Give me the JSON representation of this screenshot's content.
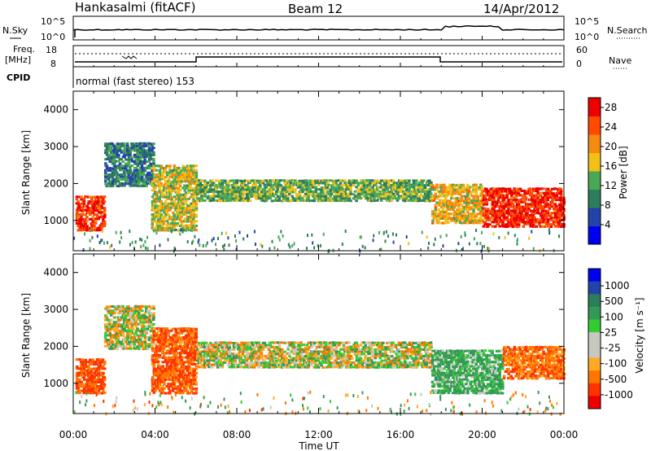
{
  "header": {
    "station": "Hankasalmi (fitACF)",
    "beam": "Beam 12",
    "date": "14/Apr/2012"
  },
  "strip": {
    "nsky_label": "N.Sky",
    "nsky_top": "10^5",
    "nsky_bottom": "10^0",
    "nsearch_label": "N.Search",
    "nsearch_top": "10^5",
    "nsearch_bottom": "10^0",
    "freq_label": "Freq.",
    "freq_unit": "[MHz]",
    "freq_top": "18",
    "freq_bottom": "8",
    "nave_label": "Nave",
    "nave_top": "60",
    "nave_bottom": "0",
    "cpid_label": "CPID",
    "cpid_text": "normal (fast stereo) 153"
  },
  "colors": {
    "power_scale": [
      "#0000ee",
      "#2244aa",
      "#2e7d5a",
      "#4aa854",
      "#f2c018",
      "#f58a10",
      "#ff4a00",
      "#ee0000"
    ],
    "velocity_scale": [
      "#ee0000",
      "#ff3300",
      "#ff7700",
      "#ffaa22",
      "#c8c8c0",
      "#c8c8c0",
      "#33cc33",
      "#339955",
      "#2e7d5a",
      "#2244aa",
      "#0000ee"
    ],
    "ground_scatter": "#c0c0b8"
  },
  "chart_data": [
    {
      "type": "heatmap",
      "title": "Power",
      "ylabel": "Slant Range [km]",
      "xlabel": "",
      "xlim": [
        "00:00",
        "00:00"
      ],
      "ylim": [
        180,
        4500
      ],
      "yticks": [
        "1000",
        "2000",
        "3000",
        "4000"
      ],
      "xticks": [
        "00:00",
        "04:00",
        "08:00",
        "12:00",
        "16:00",
        "20:00",
        "00:00"
      ],
      "colorbar": {
        "label": "Power [dB]",
        "ticks": [
          "4",
          "8",
          "12",
          "16",
          "20",
          "24",
          "28"
        ],
        "range": [
          0,
          30
        ]
      },
      "regions": [
        {
          "t": [
            0.1,
            1.5
          ],
          "r": [
            700,
            1650
          ],
          "level": 26
        },
        {
          "t": [
            1.5,
            3.9
          ],
          "r": [
            1900,
            3100
          ],
          "level": 9
        },
        {
          "t": [
            3.8,
            6.0
          ],
          "r": [
            700,
            2500
          ],
          "level": 16
        },
        {
          "t": [
            6.0,
            17.5
          ],
          "r": [
            1500,
            2100
          ],
          "level": 13
        },
        {
          "t": [
            17.5,
            20.0
          ],
          "r": [
            900,
            2000
          ],
          "level": 18
        },
        {
          "t": [
            20.0,
            24.0
          ],
          "r": [
            800,
            1900
          ],
          "level": 27
        }
      ]
    },
    {
      "type": "heatmap",
      "title": "Velocity",
      "ylabel": "Slant Range [km]",
      "xlabel": "Time UT",
      "xlim": [
        "00:00",
        "00:00"
      ],
      "ylim": [
        180,
        4500
      ],
      "yticks": [
        "1000",
        "2000",
        "3000",
        "4000"
      ],
      "xticks": [
        "00:00",
        "04:00",
        "08:00",
        "12:00",
        "16:00",
        "20:00",
        "00:00"
      ],
      "colorbar": {
        "label": "Velocity [m s⁻¹]",
        "ticks": [
          "1000",
          "500",
          "100",
          "25",
          "-25",
          "-100",
          "-500",
          "-1000"
        ]
      },
      "regions": [
        {
          "t": [
            0.1,
            1.5
          ],
          "r": [
            700,
            1650
          ],
          "velocity": -300
        },
        {
          "t": [
            1.5,
            3.9
          ],
          "r": [
            1900,
            3100
          ],
          "velocity": 0
        },
        {
          "t": [
            3.8,
            6.0
          ],
          "r": [
            700,
            2500
          ],
          "velocity": -250
        },
        {
          "t": [
            6.0,
            17.5
          ],
          "r": [
            1400,
            2100
          ],
          "velocity": 0
        },
        {
          "t": [
            17.5,
            21.0
          ],
          "r": [
            700,
            1900
          ],
          "velocity": 150
        },
        {
          "t": [
            21.0,
            24.0
          ],
          "r": [
            1100,
            2000
          ],
          "velocity": -200
        }
      ]
    }
  ]
}
